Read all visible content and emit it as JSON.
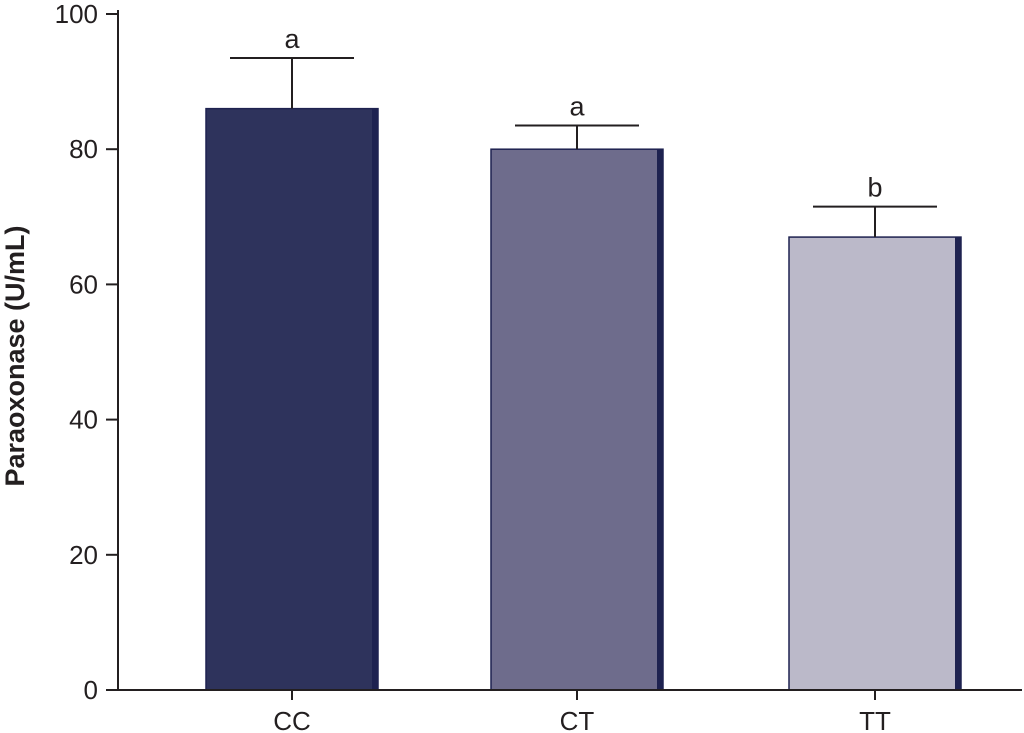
{
  "chart_data": {
    "type": "bar",
    "ylabel": "Paraoxonase (U/mL)",
    "xlabel": "",
    "categories": [
      "CC",
      "CT",
      "TT"
    ],
    "values": [
      86,
      80,
      67
    ],
    "error_upper": [
      93.5,
      83.5,
      71.5
    ],
    "significance_labels": [
      "a",
      "a",
      "b"
    ],
    "ylim": [
      0,
      100
    ],
    "yticks": [
      0,
      20,
      40,
      60,
      80,
      100
    ],
    "grid": false,
    "colors": {
      "bar_fill": [
        "#2e335c",
        "#6e6c8c",
        "#bbb9c9"
      ],
      "bar_edge": "#1e2250",
      "axis": "#231f20"
    }
  }
}
